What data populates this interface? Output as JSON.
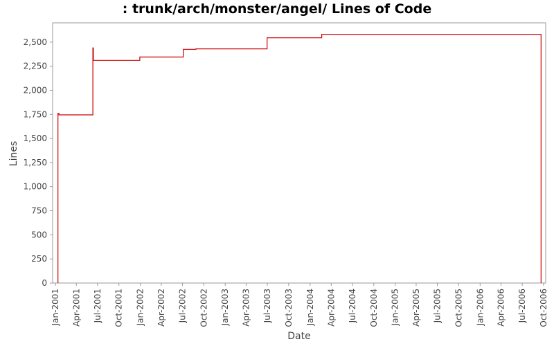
{
  "chart_data": {
    "type": "line",
    "title": ": trunk/arch/monster/angel/ Lines of Code",
    "xlabel": "Date",
    "ylabel": "Lines",
    "ylim": [
      0,
      2700
    ],
    "yticks": [
      0,
      250,
      500,
      750,
      1000,
      1250,
      1500,
      1750,
      2000,
      2250,
      2500
    ],
    "ytick_labels": [
      "0",
      "250",
      "500",
      "750",
      "1,000",
      "1,250",
      "1,500",
      "1,750",
      "2,000",
      "2,250",
      "2,500"
    ],
    "xlim": [
      "2000-12-20",
      "2006-10-10"
    ],
    "xticks": [
      "2001-01-01",
      "2001-04-01",
      "2001-07-01",
      "2001-10-01",
      "2002-01-01",
      "2002-04-01",
      "2002-07-01",
      "2002-10-01",
      "2003-01-01",
      "2003-04-01",
      "2003-07-01",
      "2003-10-01",
      "2004-01-01",
      "2004-04-01",
      "2004-07-01",
      "2004-10-01",
      "2005-01-01",
      "2005-04-01",
      "2005-07-01",
      "2005-10-01",
      "2006-01-01",
      "2006-04-01",
      "2006-07-01",
      "2006-10-01"
    ],
    "xtick_labels": [
      "Jan-2001",
      "Apr-2001",
      "Jul-2001",
      "Oct-2001",
      "Jan-2002",
      "Apr-2002",
      "Jul-2002",
      "Oct-2002",
      "Jan-2003",
      "Apr-2003",
      "Jul-2003",
      "Oct-2003",
      "Jan-2004",
      "Apr-2004",
      "Jul-2004",
      "Oct-2004",
      "Jan-2005",
      "Apr-2005",
      "Jul-2005",
      "Oct-2005",
      "Jan-2006",
      "Apr-2006",
      "Jul-2006",
      "Oct-2006"
    ],
    "grid": false,
    "legend": "none",
    "series": [
      {
        "color": "#cc0000",
        "step": true,
        "points": [
          {
            "x": "2001-01-12",
            "y": 0
          },
          {
            "x": "2001-01-12",
            "y": 1760
          },
          {
            "x": "2001-01-16",
            "y": 1760
          },
          {
            "x": "2001-01-16",
            "y": 1745
          },
          {
            "x": "2001-06-11",
            "y": 1745
          },
          {
            "x": "2001-06-11",
            "y": 2440
          },
          {
            "x": "2001-06-13",
            "y": 2440
          },
          {
            "x": "2001-06-13",
            "y": 2310
          },
          {
            "x": "2001-12-30",
            "y": 2310
          },
          {
            "x": "2001-12-30",
            "y": 2345
          },
          {
            "x": "2002-07-05",
            "y": 2345
          },
          {
            "x": "2002-07-05",
            "y": 2425
          },
          {
            "x": "2002-08-28",
            "y": 2425
          },
          {
            "x": "2002-08-28",
            "y": 2430
          },
          {
            "x": "2003-06-30",
            "y": 2430
          },
          {
            "x": "2003-06-30",
            "y": 2545
          },
          {
            "x": "2004-02-20",
            "y": 2545
          },
          {
            "x": "2004-02-20",
            "y": 2580
          },
          {
            "x": "2006-09-20",
            "y": 2580
          },
          {
            "x": "2006-09-20",
            "y": 0
          }
        ]
      }
    ]
  }
}
